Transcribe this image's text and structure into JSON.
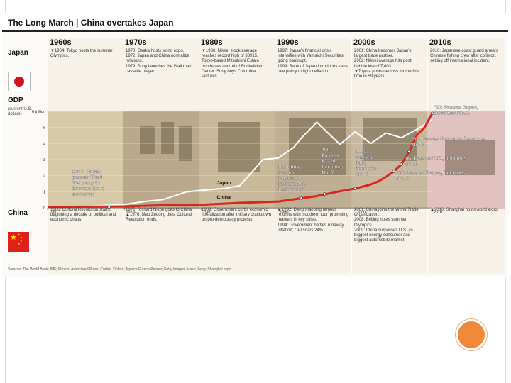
{
  "title": "The Long March | China overtakes Japan",
  "decades": [
    "1960s",
    "1970s",
    "1980s",
    "1990s",
    "2000s",
    "2010s"
  ],
  "labels": {
    "japan": "Japan",
    "gdp": "GDP",
    "gdp_unit": "(current U.S. dollars)",
    "china": "China",
    "japan_series": "Japan",
    "china_series": "China"
  },
  "japan_notes": [
    "▼1964: Tokyo hosts the summer Olympics.",
    "1970: Osaka hosts world expo.\n1972: Japan and China normalize relations.\n1979: Sony launches the Walkman cassette player.",
    "▼1986: Nikkei stock average reaches record high of 38915.\nTokyo-based Mitsubishi Estate purchases control of Rockefeller Center. Sony buys Columbia Pictures.",
    "1997: Japan's financial crisis intensifies with Yamaichi Securities going bankrupt.\n1999: Bank of Japan introduces zero-rate policy to fight deflation.",
    "2001: China becomes Japan's largest trade partner.\n2002: Nikkei average hits post-bubble low of 7,603.\n▼Toyota posts net loss for the first time in 59 years.",
    "2010: Japanese coast guard arrests Chinese fishing crew after collision, setting off international incident."
  ],
  "china_notes": [
    "1966: Cultural Revolution starts, beginning a decade of political and economic chaos.",
    "1972: Richard Nixon goes to China.\n▲1976: Mao Zedong dies; Cultural Revolution ends.",
    "1989: Government curbs economic liberalization after military crackdown on pro-democracy protests.",
    "▲1992: Deng Xiaoping renews reforms with 'southern tour' promoting markets in key cities.\n1994: Government battles runaway inflation; CPI soars 24%.",
    "2001: China joins the World Trade Organization.\n2008: Beijing hosts summer Olympics.\n2009: China surpasses U.S. as biggest energy consumer and biggest automobile market.",
    "▲2010: Shanghai hosts world expo."
  ],
  "source": "Sources: The World Bank; IMF; Photos: Associated Press; Corbis; Xinhua; Agence France-Presse; Getty Images; Mako; Zeng; Shanghai expo",
  "colors": {
    "china_line": "#d9261c",
    "japan_line": "#ffffff",
    "accent": "#f08a3a",
    "border": "#e9b59a"
  },
  "chart_data": {
    "type": "line",
    "ylabel": "GDP",
    "yunit": "trillion",
    "ylim": [
      0,
      6
    ],
    "xlim": [
      1960,
      2010
    ],
    "x_ticks": [
      "1960",
      "1970",
      "1980",
      "1990",
      "2000",
      "2010"
    ],
    "y_ticks": [
      "6 trillion",
      "5",
      "4",
      "3",
      "2",
      "1",
      "0"
    ],
    "series": [
      {
        "name": "Japan",
        "x": [
          1960,
          1965,
          1970,
          1973,
          1975,
          1978,
          1980,
          1983,
          1985,
          1987,
          1988,
          1990,
          1992,
          1993,
          1995,
          1997,
          1998,
          2000,
          2002,
          2004,
          2006,
          2008,
          2010
        ],
        "y": [
          0.04,
          0.09,
          0.21,
          0.42,
          0.51,
          0.98,
          1.09,
          1.2,
          1.38,
          2.46,
          3.0,
          3.1,
          3.76,
          4.35,
          5.33,
          4.4,
          3.95,
          4.73,
          4.0,
          4.65,
          4.36,
          4.88,
          5.49
        ]
      },
      {
        "name": "China",
        "x": [
          1960,
          1965,
          1970,
          1975,
          1980,
          1985,
          1990,
          1995,
          1998,
          2000,
          2001,
          2002,
          2003,
          2004,
          2005,
          2006,
          2007,
          2008,
          2009,
          2010
        ],
        "y": [
          0.06,
          0.07,
          0.09,
          0.16,
          0.19,
          0.31,
          0.39,
          0.73,
          1.03,
          1.2,
          1.32,
          1.45,
          1.64,
          1.93,
          2.26,
          2.71,
          3.49,
          4.52,
          4.99,
          5.88
        ]
      }
    ],
    "annotations": [
      {
        "x": 1968,
        "text": "1967: Japan passes West Germany to become No. 2 economy"
      },
      {
        "x": 1993,
        "text": "'93: China passes Canada to become No. 8 economy"
      },
      {
        "x": 1996,
        "text": "'96: Passes Brazil, becomes No. 7"
      },
      {
        "x": 2000,
        "text": "2000: Passes Italy, becomes No. 6"
      },
      {
        "x": 2005,
        "text": "'05: Passes France, becomes No. 5"
      },
      {
        "x": 2006,
        "text": "'06: Passes U.K., becomes No. 4"
      },
      {
        "x": 2007,
        "text": "'07: Passes Germany, becomes No. 3"
      },
      {
        "x": 2010,
        "text": "'10: Passes Japan, becomes No. 2"
      }
    ]
  }
}
